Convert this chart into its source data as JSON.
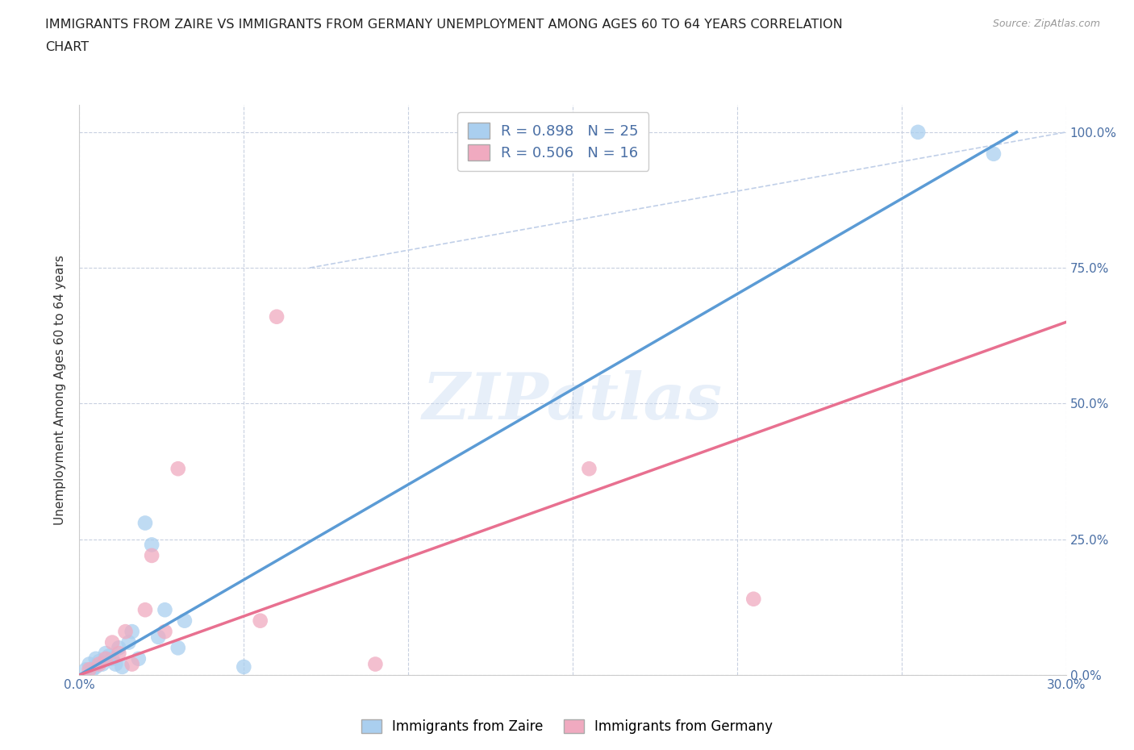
{
  "title_line1": "IMMIGRANTS FROM ZAIRE VS IMMIGRANTS FROM GERMANY UNEMPLOYMENT AMONG AGES 60 TO 64 YEARS CORRELATION",
  "title_line2": "CHART",
  "source": "Source: ZipAtlas.com",
  "ylabel": "Unemployment Among Ages 60 to 64 years",
  "xlim": [
    0.0,
    0.3
  ],
  "ylim": [
    0.0,
    1.05
  ],
  "ytick_values": [
    0.0,
    0.25,
    0.5,
    0.75,
    1.0
  ],
  "ytick_labels": [
    "0.0%",
    "25.0%",
    "50.0%",
    "75.0%",
    "100.0%"
  ],
  "xtick_values": [
    0.0,
    0.05,
    0.1,
    0.15,
    0.2,
    0.25,
    0.3
  ],
  "xtick_labels": [
    "0.0%",
    "",
    "",
    "",
    "",
    "",
    "30.0%"
  ],
  "zaire_R": 0.898,
  "zaire_N": 25,
  "germany_R": 0.506,
  "germany_N": 16,
  "zaire_color": "#aacfef",
  "germany_color": "#f0aac0",
  "zaire_line_color": "#5b9bd5",
  "germany_line_color": "#e87090",
  "diagonal_color": "#c0cfe8",
  "legend_label_zaire": "Immigrants from Zaire",
  "legend_label_germany": "Immigrants from Germany",
  "zaire_scatter_x": [
    0.002,
    0.003,
    0.004,
    0.005,
    0.005,
    0.006,
    0.007,
    0.008,
    0.009,
    0.01,
    0.011,
    0.012,
    0.013,
    0.015,
    0.016,
    0.018,
    0.02,
    0.022,
    0.024,
    0.026,
    0.03,
    0.032,
    0.05,
    0.255,
    0.278
  ],
  "zaire_scatter_y": [
    0.01,
    0.02,
    0.01,
    0.03,
    0.015,
    0.025,
    0.02,
    0.04,
    0.035,
    0.03,
    0.02,
    0.05,
    0.015,
    0.06,
    0.08,
    0.03,
    0.28,
    0.24,
    0.07,
    0.12,
    0.05,
    0.1,
    0.015,
    1.0,
    0.96
  ],
  "germany_scatter_x": [
    0.003,
    0.006,
    0.008,
    0.01,
    0.012,
    0.014,
    0.016,
    0.02,
    0.022,
    0.026,
    0.03,
    0.055,
    0.06,
    0.09,
    0.155,
    0.205
  ],
  "germany_scatter_y": [
    0.01,
    0.02,
    0.03,
    0.06,
    0.04,
    0.08,
    0.02,
    0.12,
    0.22,
    0.08,
    0.38,
    0.1,
    0.66,
    0.02,
    0.38,
    0.14
  ],
  "zaire_line_x0": 0.0,
  "zaire_line_y0": 0.0,
  "zaire_line_x1": 0.285,
  "zaire_line_y1": 1.0,
  "germany_line_x0": 0.0,
  "germany_line_y0": 0.0,
  "germany_line_x1": 0.3,
  "germany_line_y1": 0.65,
  "diagonal_line_x0": 0.07,
  "diagonal_line_y0": 0.75,
  "diagonal_line_x1": 0.3,
  "diagonal_line_y1": 1.0,
  "watermark_text": "ZIPatlas",
  "background_color": "#ffffff",
  "grid_color": "#c8d0e0",
  "axis_color": "#4a6fa5",
  "title_fontsize": 11.5,
  "label_fontsize": 11,
  "tick_fontsize": 11,
  "legend_fontsize": 13
}
